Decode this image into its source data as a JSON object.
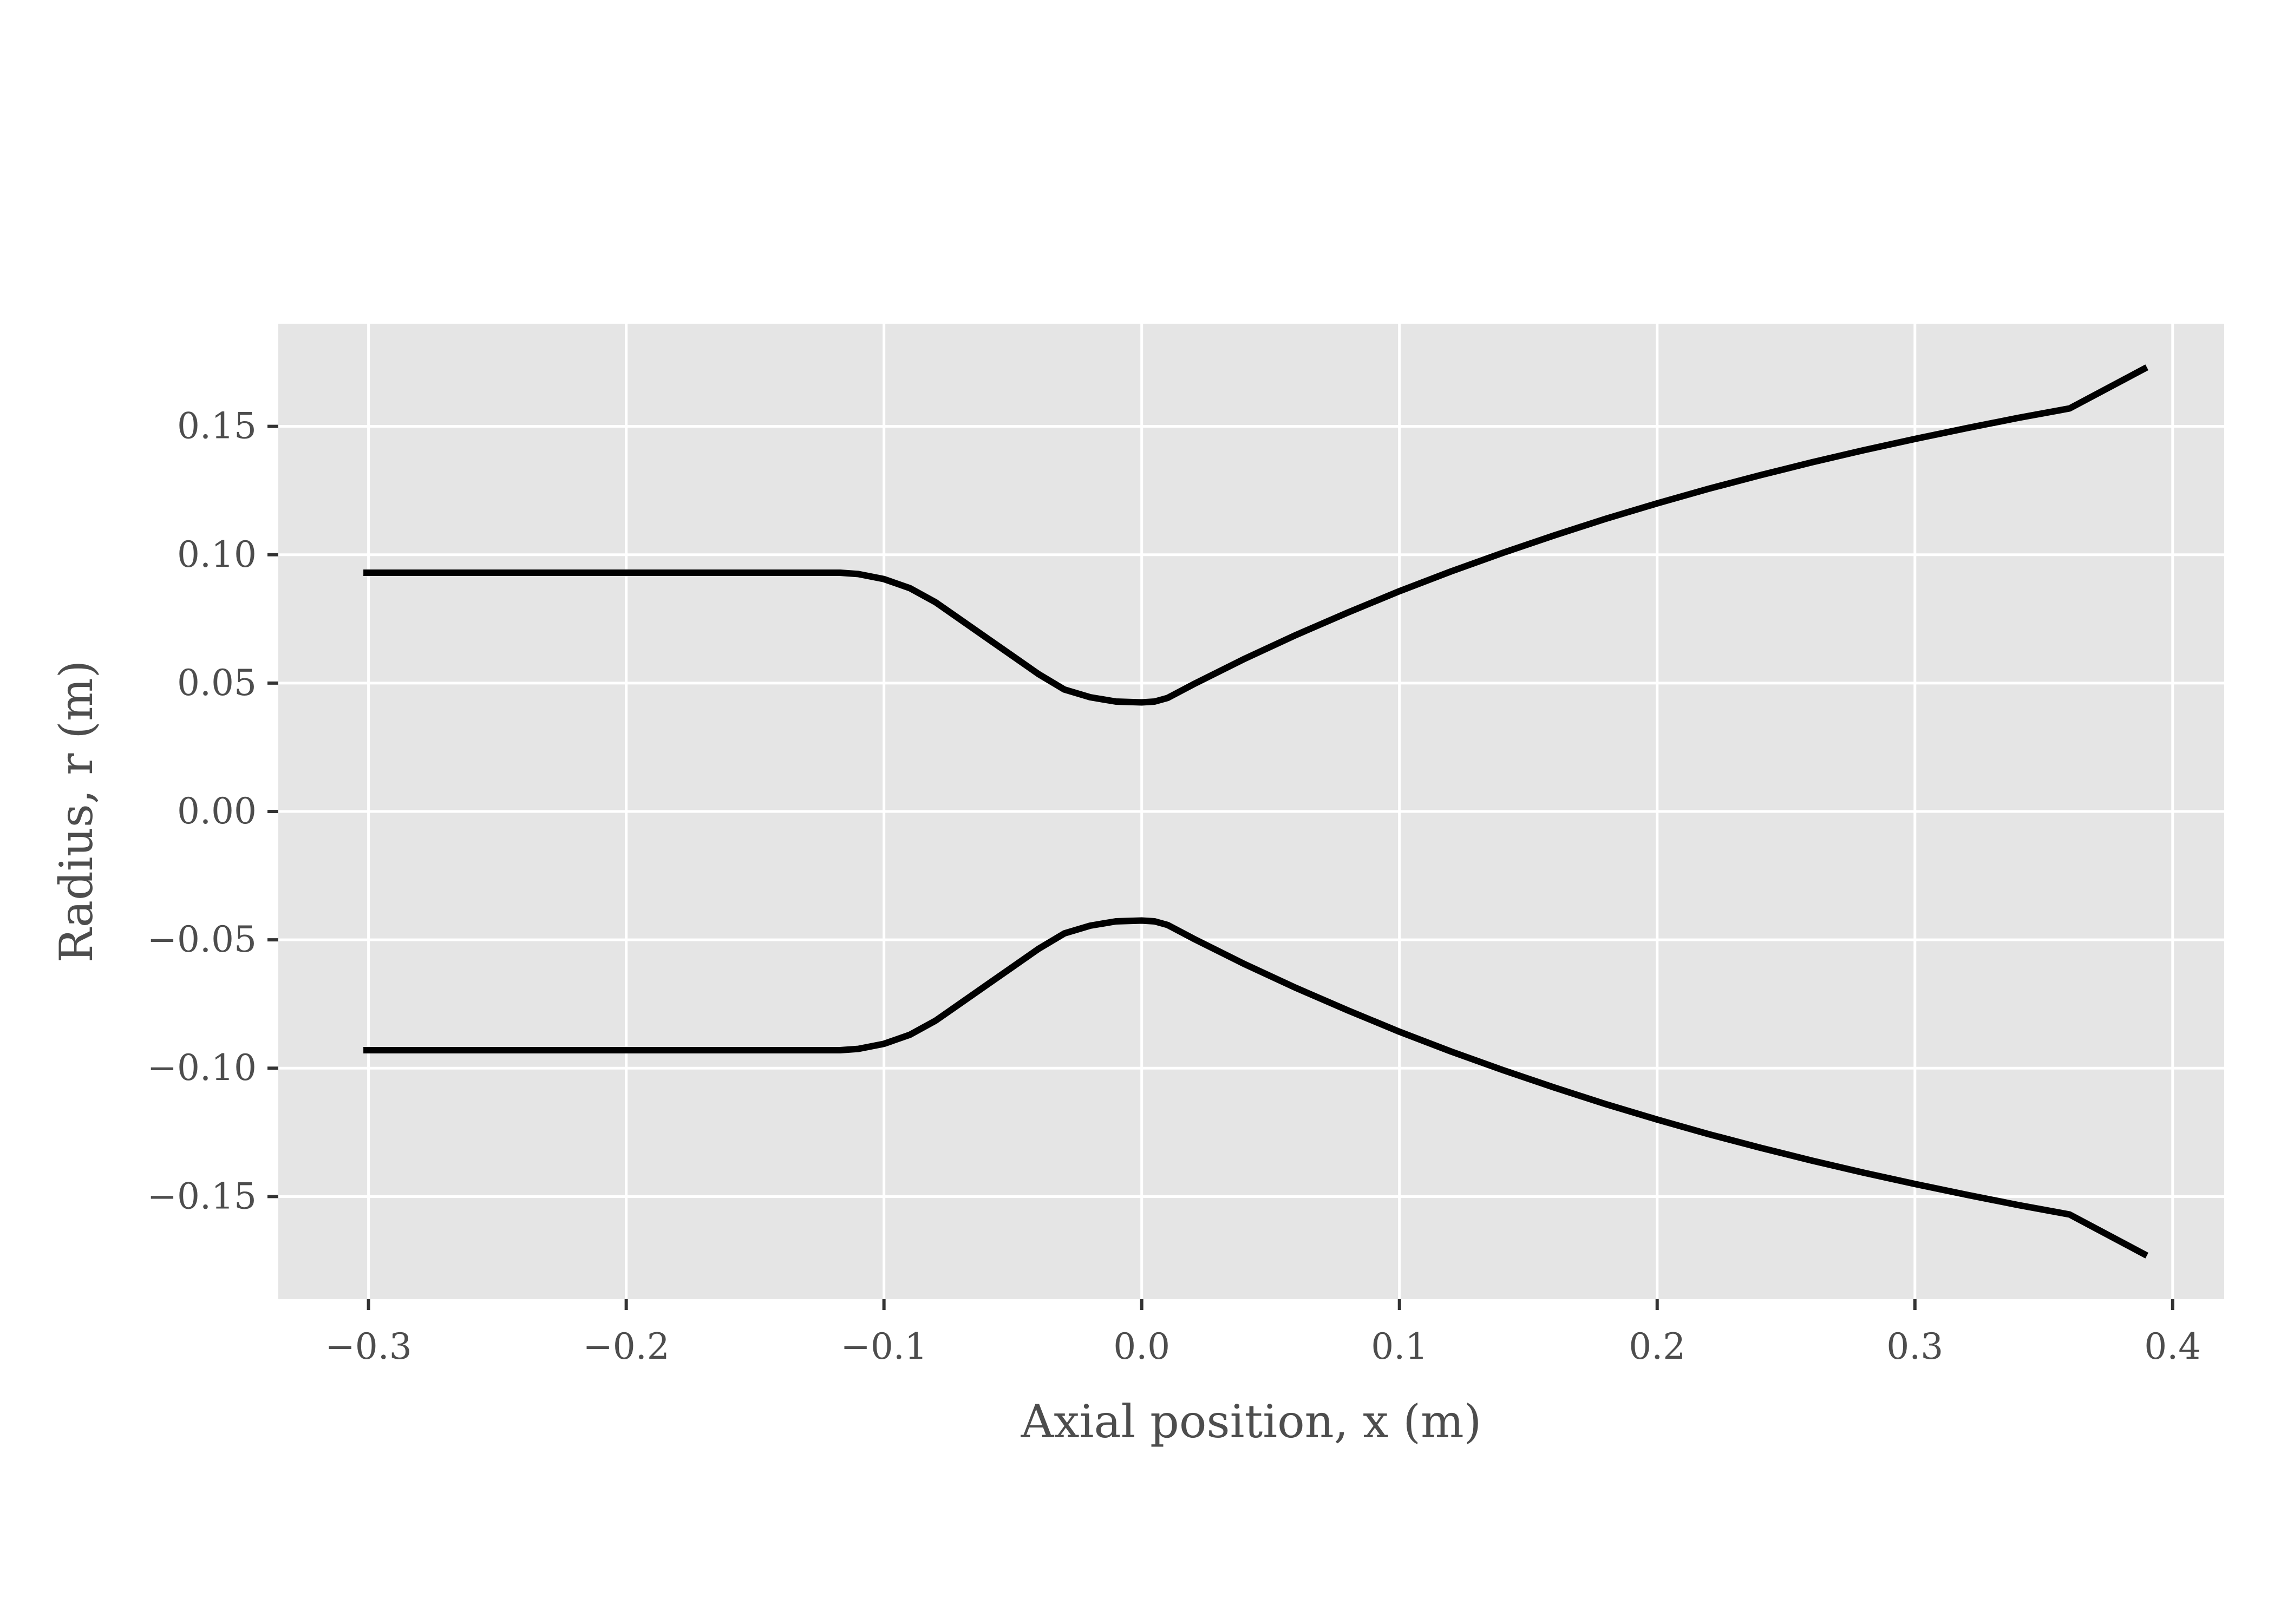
{
  "chart_data": {
    "type": "line",
    "title": "",
    "xlabel": "Axial position, x (m)",
    "ylabel": "Radius, r (m)",
    "xlim": [
      -0.335,
      0.42
    ],
    "ylim": [
      -0.19,
      0.19
    ],
    "x_ticks": [
      -0.3,
      -0.2,
      -0.1,
      0.0,
      0.1,
      0.2,
      0.3,
      0.4
    ],
    "x_tick_labels": [
      "−0.3",
      "−0.2",
      "−0.1",
      "0.0",
      "0.1",
      "0.2",
      "0.3",
      "0.4"
    ],
    "y_ticks": [
      0.15,
      0.1,
      0.05,
      0.0,
      -0.05,
      -0.1,
      -0.15
    ],
    "y_tick_labels": [
      "0.15",
      "0.10",
      "0.05",
      "0.00",
      "−0.05",
      "−0.10",
      "−0.15"
    ],
    "grid": true,
    "background": "#e5e5e5",
    "grid_color": "#ffffff",
    "line_color": "#000000",
    "series": [
      {
        "x": [
          -0.302,
          -0.28,
          -0.26,
          -0.24,
          -0.22,
          -0.2,
          -0.18,
          -0.16,
          -0.14,
          -0.12,
          -0.117,
          -0.11,
          -0.1,
          -0.09,
          -0.08,
          -0.07,
          -0.06,
          -0.05,
          -0.04,
          -0.03,
          -0.02,
          -0.01,
          0.0,
          0.005,
          0.01,
          0.02,
          0.04,
          0.06,
          0.08,
          0.1,
          0.12,
          0.14,
          0.16,
          0.18,
          0.2,
          0.22,
          0.24,
          0.26,
          0.28,
          0.3,
          0.32,
          0.34,
          0.36,
          0.39
        ],
        "y": [
          0.093,
          0.093,
          0.093,
          0.093,
          0.093,
          0.093,
          0.093,
          0.093,
          0.093,
          0.093,
          0.093,
          0.0925,
          0.0905,
          0.087,
          0.0815,
          0.0745,
          0.0675,
          0.0605,
          0.0535,
          0.0475,
          0.0445,
          0.0428,
          0.0425,
          0.0428,
          0.0442,
          0.0495,
          0.0595,
          0.0688,
          0.0775,
          0.0858,
          0.0935,
          0.1007,
          0.1075,
          0.114,
          0.12,
          0.1257,
          0.131,
          0.136,
          0.1407,
          0.1451,
          0.1493,
          0.1533,
          0.157,
          0.173
        ]
      },
      {
        "x": [
          -0.302,
          -0.28,
          -0.26,
          -0.24,
          -0.22,
          -0.2,
          -0.18,
          -0.16,
          -0.14,
          -0.12,
          -0.117,
          -0.11,
          -0.1,
          -0.09,
          -0.08,
          -0.07,
          -0.06,
          -0.05,
          -0.04,
          -0.03,
          -0.02,
          -0.01,
          0.0,
          0.005,
          0.01,
          0.02,
          0.04,
          0.06,
          0.08,
          0.1,
          0.12,
          0.14,
          0.16,
          0.18,
          0.2,
          0.22,
          0.24,
          0.26,
          0.28,
          0.3,
          0.32,
          0.34,
          0.36,
          0.39
        ],
        "y": [
          -0.093,
          -0.093,
          -0.093,
          -0.093,
          -0.093,
          -0.093,
          -0.093,
          -0.093,
          -0.093,
          -0.093,
          -0.093,
          -0.0925,
          -0.0905,
          -0.087,
          -0.0815,
          -0.0745,
          -0.0675,
          -0.0605,
          -0.0535,
          -0.0475,
          -0.0445,
          -0.0428,
          -0.0425,
          -0.0428,
          -0.0442,
          -0.0495,
          -0.0595,
          -0.0688,
          -0.0775,
          -0.0858,
          -0.0935,
          -0.1007,
          -0.1075,
          -0.114,
          -0.12,
          -0.1257,
          -0.131,
          -0.136,
          -0.1407,
          -0.1451,
          -0.1493,
          -0.1533,
          -0.157,
          -0.173
        ]
      }
    ]
  }
}
